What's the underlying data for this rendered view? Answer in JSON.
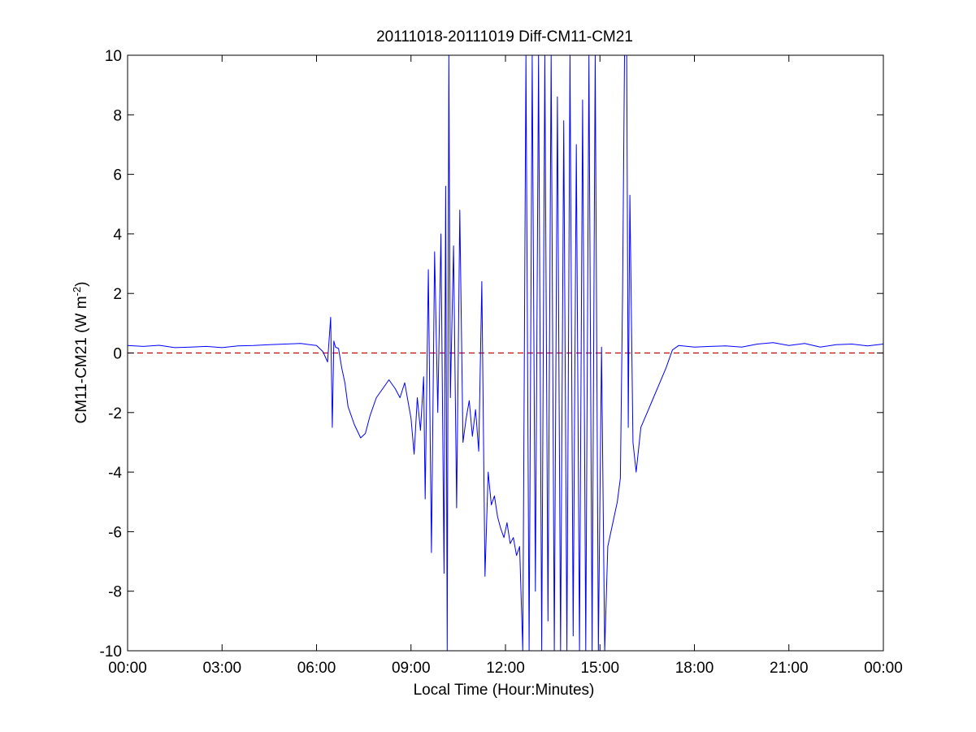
{
  "chart_data": {
    "type": "line",
    "title": "20111018-20111019 Diff-CM11-CM21",
    "xlabel": "Local Time (Hour:Minutes)",
    "ylabel_main": "CM11-CM21 (W m",
    "ylabel_exp": "-2",
    "ylabel_close": ")",
    "xlim_hours": [
      0,
      24
    ],
    "ylim": [
      -10,
      10
    ],
    "x_ticks": [
      {
        "h": 0,
        "label": "00:00"
      },
      {
        "h": 3,
        "label": "03:00"
      },
      {
        "h": 6,
        "label": "06:00"
      },
      {
        "h": 9,
        "label": "09:00"
      },
      {
        "h": 12,
        "label": "12:00"
      },
      {
        "h": 15,
        "label": "15:00"
      },
      {
        "h": 18,
        "label": "18:00"
      },
      {
        "h": 21,
        "label": "21:00"
      },
      {
        "h": 24,
        "label": "00:00"
      }
    ],
    "y_ticks": [
      {
        "v": -10,
        "label": "-10"
      },
      {
        "v": -8,
        "label": "-8"
      },
      {
        "v": -6,
        "label": "-6"
      },
      {
        "v": -4,
        "label": "-4"
      },
      {
        "v": -2,
        "label": "-2"
      },
      {
        "v": 0,
        "label": "0"
      },
      {
        "v": 2,
        "label": "2"
      },
      {
        "v": 4,
        "label": "4"
      },
      {
        "v": 6,
        "label": "6"
      },
      {
        "v": 8,
        "label": "8"
      },
      {
        "v": 10,
        "label": "10"
      }
    ],
    "grid": false,
    "reference_line": {
      "value": 0,
      "color": "#cc0000",
      "style": "dashed"
    },
    "series": [
      {
        "color": "#0000ff",
        "x_hours": [
          0.0,
          0.5,
          1.0,
          1.5,
          2.0,
          2.5,
          3.0,
          3.5,
          4.0,
          4.5,
          5.0,
          5.5,
          6.0,
          6.2,
          6.35,
          6.45,
          6.5,
          6.55,
          6.6,
          6.7,
          6.8,
          6.9,
          7.0,
          7.2,
          7.4,
          7.55,
          7.7,
          7.9,
          8.1,
          8.3,
          8.5,
          8.65,
          8.8,
          9.0,
          9.1,
          9.2,
          9.3,
          9.4,
          9.45,
          9.55,
          9.65,
          9.75,
          9.85,
          9.95,
          10.05,
          10.1,
          10.15,
          10.2,
          10.25,
          10.35,
          10.45,
          10.55,
          10.65,
          10.75,
          10.85,
          10.95,
          11.05,
          11.15,
          11.25,
          11.35,
          11.45,
          11.55,
          11.65,
          11.75,
          11.85,
          11.95,
          12.05,
          12.15,
          12.25,
          12.35,
          12.45,
          12.55,
          12.65,
          12.75,
          12.85,
          12.95,
          13.05,
          13.15,
          13.25,
          13.35,
          13.45,
          13.55,
          13.65,
          13.75,
          13.85,
          13.95,
          14.05,
          14.15,
          14.25,
          14.35,
          14.45,
          14.55,
          14.65,
          14.75,
          14.85,
          14.95,
          15.05,
          15.15,
          15.25,
          15.35,
          15.45,
          15.55,
          15.65,
          15.72,
          15.78,
          15.85,
          15.9,
          15.95,
          16.05,
          16.15,
          16.3,
          16.5,
          16.7,
          16.9,
          17.1,
          17.3,
          17.5,
          18.0,
          18.5,
          19.0,
          19.5,
          20.0,
          20.5,
          21.0,
          21.5,
          22.0,
          22.5,
          23.0,
          23.5,
          24.0
        ],
        "values": [
          0.25,
          0.22,
          0.26,
          0.18,
          0.2,
          0.22,
          0.18,
          0.24,
          0.25,
          0.28,
          0.3,
          0.32,
          0.25,
          0.05,
          -0.3,
          1.2,
          -2.5,
          0.4,
          0.2,
          0.15,
          -0.5,
          -1.0,
          -1.8,
          -2.4,
          -2.85,
          -2.7,
          -2.1,
          -1.5,
          -1.2,
          -0.9,
          -1.2,
          -1.5,
          -1.0,
          -2.2,
          -3.4,
          -1.5,
          -2.6,
          -0.8,
          -4.9,
          2.8,
          -6.7,
          3.4,
          -2.0,
          4.0,
          -7.4,
          5.6,
          -10.0,
          10.0,
          -1.5,
          3.6,
          -5.2,
          4.8,
          -3.0,
          -2.2,
          -1.6,
          -2.8,
          -1.9,
          -3.3,
          2.4,
          -7.5,
          -4.0,
          -5.1,
          -4.8,
          -5.5,
          -5.9,
          -6.2,
          -5.7,
          -6.4,
          -6.2,
          -6.8,
          -6.5,
          -10.0,
          10.0,
          -10.0,
          10.0,
          -8.0,
          10.0,
          -10.0,
          10.0,
          -9.0,
          10.0,
          -10.0,
          8.6,
          -10.0,
          7.8,
          -10.0,
          10.0,
          -9.5,
          7.0,
          -10.0,
          8.5,
          -10.0,
          10.0,
          -10.0,
          10.0,
          -10.0,
          0.2,
          -10.0,
          -6.5,
          -6.0,
          -5.5,
          -5.0,
          -4.2,
          2.0,
          10.0,
          10.0,
          -2.5,
          5.3,
          -3.0,
          -4.0,
          -2.5,
          -2.0,
          -1.5,
          -1.0,
          -0.5,
          0.1,
          0.25,
          0.2,
          0.22,
          0.24,
          0.2,
          0.3,
          0.35,
          0.25,
          0.32,
          0.2,
          0.28,
          0.3,
          0.24,
          0.3
        ]
      }
    ]
  }
}
